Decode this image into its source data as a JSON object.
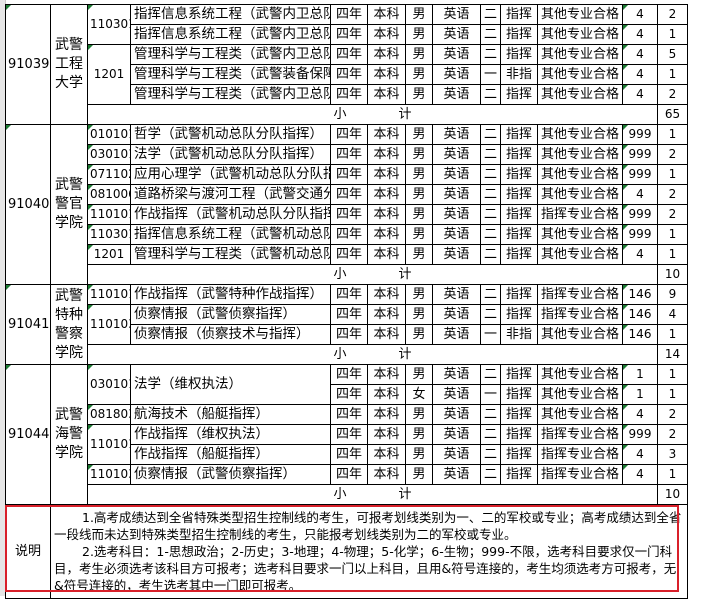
{
  "subtotal_label": [
    "小",
    "计"
  ],
  "groups": [
    {
      "code": "91039",
      "school": "武警工程大学",
      "subtotal": "65",
      "rows": [
        {
          "major_code": "110301",
          "span": 2,
          "name": "指挥信息系统工程（武警内卫总队执勤指挥）",
          "years": "四年",
          "level": "本科",
          "gender": "男",
          "lang": "英语",
          "batch": "二",
          "type": "指挥",
          "req": "其他专业合格",
          "subject": "4",
          "plan": "2"
        },
        {
          "name": "指挥信息系统工程（武警内卫总队机动指挥）",
          "years": "四年",
          "level": "本科",
          "gender": "男",
          "lang": "英语",
          "batch": "二",
          "type": "指挥",
          "req": "其他专业合格",
          "subject": "4",
          "plan": "1"
        },
        {
          "major_code": "1201",
          "span": 3,
          "name": "管理科学与工程类（武警内卫总队执勤指挥）",
          "years": "四年",
          "level": "本科",
          "gender": "男",
          "lang": "英语",
          "batch": "二",
          "type": "指挥",
          "req": "其他专业合格",
          "subject": "4",
          "plan": "5"
        },
        {
          "name": "管理科学与工程类（武警装备保障管理）",
          "years": "四年",
          "level": "本科",
          "gender": "男",
          "lang": "英语",
          "batch": "一",
          "type": "非指",
          "req": "其他专业合格",
          "subject": "4",
          "plan": "1"
        },
        {
          "name": "管理科学与工程类（武警内卫总队机动指挥）",
          "years": "四年",
          "level": "本科",
          "gender": "男",
          "lang": "英语",
          "batch": "二",
          "type": "指挥",
          "req": "其他专业合格",
          "subject": "4",
          "plan": "2"
        }
      ]
    },
    {
      "code": "91040",
      "school": "武警警官学院",
      "subtotal": "10",
      "rows": [
        {
          "major_code": "010101",
          "span": 1,
          "name": "哲学（武警机动总队分队指挥）",
          "years": "四年",
          "level": "本科",
          "gender": "男",
          "lang": "英语",
          "batch": "二",
          "type": "指挥",
          "req": "其他专业合格",
          "subject": "999",
          "plan": "1"
        },
        {
          "major_code": "030101",
          "span": 1,
          "name": "法学（武警机动总队分队指挥）",
          "years": "四年",
          "level": "本科",
          "gender": "男",
          "lang": "英语",
          "batch": "二",
          "type": "指挥",
          "req": "其他专业合格",
          "subject": "999",
          "plan": "2"
        },
        {
          "major_code": "071102",
          "span": 1,
          "name": "应用心理学（武警机动总队分队指挥）",
          "years": "四年",
          "level": "本科",
          "gender": "男",
          "lang": "英语",
          "batch": "二",
          "type": "指挥",
          "req": "其他专业合格",
          "subject": "999",
          "plan": "1"
        },
        {
          "major_code": "081006",
          "span": 1,
          "name": "道路桥梁与渡河工程（武警交通分队指挥）",
          "years": "四年",
          "level": "本科",
          "gender": "男",
          "lang": "英语",
          "batch": "二",
          "type": "指挥",
          "req": "其他专业合格",
          "subject": "4",
          "plan": "2"
        },
        {
          "major_code": "110101",
          "span": 1,
          "name": "作战指挥（武警机动总队分队指挥）",
          "years": "四年",
          "level": "本科",
          "gender": "男",
          "lang": "英语",
          "batch": "二",
          "type": "指挥",
          "req": "指挥专业合格",
          "subject": "999",
          "plan": "2"
        },
        {
          "major_code": "110301",
          "span": 1,
          "name": "指挥信息系统工程（武警机动总队分队指挥）",
          "years": "四年",
          "level": "本科",
          "gender": "男",
          "lang": "英语",
          "batch": "二",
          "type": "指挥",
          "req": "其他专业合格",
          "subject": "999",
          "plan": "1"
        },
        {
          "major_code": "1201",
          "span": 1,
          "name": "管理科学与工程类（武警机动总队分队指挥）",
          "years": "四年",
          "level": "本科",
          "gender": "男",
          "lang": "英语",
          "batch": "二",
          "type": "指挥",
          "req": "其他专业合格",
          "subject": "4",
          "plan": "1"
        }
      ]
    },
    {
      "code": "91041",
      "school": "武警特种警察学院",
      "subtotal": "14",
      "rows": [
        {
          "major_code": "110101",
          "span": 1,
          "name": "作战指挥（武警特种作战指挥）",
          "years": "四年",
          "level": "本科",
          "gender": "男",
          "lang": "英语",
          "batch": "二",
          "type": "指挥",
          "req": "指挥专业合格",
          "subject": "146",
          "plan": "9"
        },
        {
          "major_code": "110103",
          "span": 2,
          "name": "侦察情报（武警侦察指挥）",
          "years": "四年",
          "level": "本科",
          "gender": "男",
          "lang": "英语",
          "batch": "二",
          "type": "指挥",
          "req": "指挥专业合格",
          "subject": "146",
          "plan": "4"
        },
        {
          "name": "侦察情报（侦察技术与指挥）",
          "years": "四年",
          "level": "本科",
          "gender": "男",
          "lang": "英语",
          "batch": "一",
          "type": "非指",
          "req": "其他专业合格",
          "subject": "146",
          "plan": "1"
        }
      ]
    },
    {
      "code": "91044",
      "school": "武警海警学院",
      "subtotal": "10",
      "rows": [
        {
          "major_code": "030101",
          "span": 2,
          "name_span": 2,
          "name": "法学（维权执法）",
          "years": "四年",
          "level": "本科",
          "gender": "男",
          "lang": "英语",
          "batch": "二",
          "type": "指挥",
          "req": "其他专业合格",
          "subject": "1",
          "plan": "1"
        },
        {
          "years": "四年",
          "level": "本科",
          "gender": "女",
          "lang": "英语",
          "batch": "一",
          "type": "指挥",
          "req": "其他专业合格",
          "subject": "1",
          "plan": "1"
        },
        {
          "major_code": "081803",
          "span": 1,
          "name": "航海技术（船艇指挥）",
          "years": "四年",
          "level": "本科",
          "gender": "男",
          "lang": "英语",
          "batch": "二",
          "type": "指挥",
          "req": "其他专业合格",
          "subject": "4",
          "plan": "2"
        },
        {
          "major_code": "110101",
          "span": 2,
          "name": "作战指挥（维权执法）",
          "years": "四年",
          "level": "本科",
          "gender": "男",
          "lang": "英语",
          "batch": "二",
          "type": "指挥",
          "req": "指挥专业合格",
          "subject": "999",
          "plan": "2"
        },
        {
          "name": "作战指挥（船艇指挥）",
          "years": "四年",
          "level": "本科",
          "gender": "男",
          "lang": "英语",
          "batch": "二",
          "type": "指挥",
          "req": "指挥专业合格",
          "subject": "4",
          "plan": "3"
        },
        {
          "major_code": "110103",
          "span": 1,
          "name": "侦察情报（武警侦察指挥）",
          "years": "四年",
          "level": "本科",
          "gender": "男",
          "lang": "英语",
          "batch": "二",
          "type": "指挥",
          "req": "指挥专业合格",
          "subject": "4",
          "plan": "1"
        }
      ]
    }
  ],
  "note": {
    "label": "说明",
    "lines": [
      "1.高考成绩达到全省特殊类型招生控制线的考生，可报考划线类别为一、二的军校或专业；高考成绩达到全省一段线而未达到特殊类型招生控制线的考生，只能报考划线类别为二的军校或专业。",
      "2.选考科目：1-思想政治；2-历史；3-地理；4-物理；5-化学；6-生物；999-不限，选考科目要求仅一门科目，考生必须选考该科目方可报考；选考科目要求一门以上科目，且用&符号连接的，考生均须选考方可报考，无&符号连接的，考生选考其中一门即可报考。"
    ]
  },
  "colors": {
    "highlight_border": "#d9202a",
    "cell_marker": "#1e7b34"
  }
}
